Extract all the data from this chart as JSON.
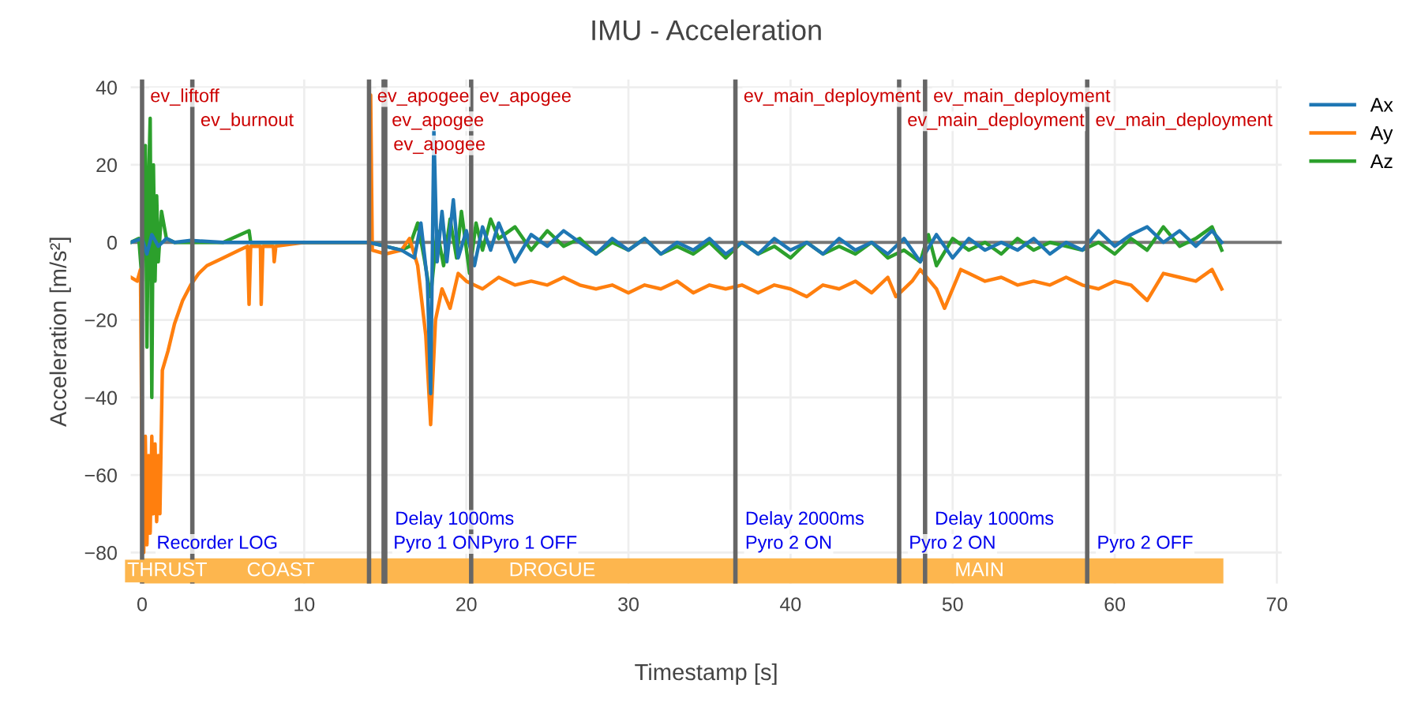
{
  "chart_data": {
    "type": "line",
    "title": "IMU - Acceleration",
    "xlabel": "Timestamp [s]",
    "ylabel": "Acceleration [m/s²]",
    "xlim": [
      -0.7,
      70.3
    ],
    "ylim": [
      -88,
      42
    ],
    "xticks": [
      0,
      10,
      20,
      30,
      40,
      50,
      60,
      70
    ],
    "yticks": [
      -80,
      -60,
      -40,
      -20,
      0,
      20,
      40
    ],
    "grid": true,
    "legend": "top right",
    "marker": "none",
    "line_style": "solid",
    "series": [
      {
        "name": "Ax",
        "color": "#1f77b4",
        "x": [
          -0.7,
          0,
          0.3,
          0.6,
          1,
          1.5,
          2,
          3,
          5,
          8,
          12,
          14,
          15,
          16,
          16.8,
          17.2,
          17.6,
          17.8,
          18.0,
          18.2,
          18.5,
          18.8,
          19.2,
          19.5,
          20,
          20.5,
          21,
          21.5,
          22,
          22.5,
          23,
          24,
          25,
          26,
          27,
          28,
          29,
          30,
          31,
          32,
          33,
          34,
          35,
          36,
          37,
          38,
          39,
          40,
          41,
          42,
          43,
          44,
          45,
          46,
          47,
          48,
          49,
          50,
          51,
          52,
          53,
          54,
          55,
          56,
          57,
          58,
          59,
          60,
          61,
          62,
          63,
          64,
          65,
          66,
          66.6
        ],
        "values": [
          0,
          1,
          -3,
          2,
          -1,
          1,
          0,
          0.5,
          0,
          0,
          0,
          0,
          -1,
          -2,
          -4,
          5,
          -10,
          -39,
          29,
          -5,
          8,
          -5,
          11,
          -4,
          3,
          -6,
          4,
          -2,
          5,
          0,
          -5,
          2,
          -1,
          3,
          0,
          -3,
          1,
          -2,
          1,
          -3,
          0,
          -2,
          1,
          -3,
          0,
          -3,
          1,
          -2,
          0,
          -3,
          1,
          -2,
          0,
          -3,
          1,
          -5,
          2,
          -4,
          1,
          -2,
          0,
          -2,
          1,
          -3,
          0,
          -2,
          3,
          -1,
          2,
          4,
          0,
          3,
          -1,
          3,
          0
        ]
      },
      {
        "name": "Ay",
        "color": "#ff7f0e",
        "x": [
          -0.7,
          -0.3,
          -0.1,
          0,
          0.1,
          0.2,
          0.3,
          0.4,
          0.5,
          0.6,
          0.7,
          0.8,
          0.9,
          1.0,
          1.1,
          1.25,
          1.6,
          2,
          2.5,
          3,
          3.5,
          4,
          5,
          6,
          6.5,
          6.6,
          6.7,
          7.3,
          7.35,
          7.45,
          8.1,
          8.15,
          8.25,
          10,
          13,
          14,
          14.1,
          14.2,
          15,
          16,
          16.5,
          17,
          17.5,
          17.8,
          18.1,
          18.5,
          19,
          19.5,
          20,
          21,
          22,
          23,
          24,
          25,
          26,
          27,
          28,
          29,
          30,
          31,
          32,
          33,
          34,
          35,
          36,
          37,
          38,
          39,
          40,
          41,
          42,
          43,
          44,
          45,
          46,
          46.5,
          47.5,
          48,
          49,
          49.5,
          50.5,
          51,
          52,
          53,
          54,
          55,
          56,
          57,
          58,
          59,
          60,
          61,
          62,
          63,
          64,
          65,
          66,
          66.6
        ],
        "values": [
          -9,
          -10,
          -7,
          -60,
          -80,
          -50,
          -78,
          -55,
          -75,
          -50,
          -70,
          -52,
          -72,
          -55,
          -70,
          -33,
          -28,
          -21,
          -15,
          -11,
          -8,
          -6,
          -4,
          -2,
          -1,
          -16,
          -1,
          -1,
          -16,
          -1,
          -1,
          -5,
          -1,
          0,
          0,
          0,
          38,
          -2,
          -3,
          -2,
          1,
          -6,
          -24,
          -47,
          -20,
          -12,
          -17,
          -8,
          -10,
          -12,
          -9,
          -11,
          -10,
          -11,
          -9,
          -11,
          -12,
          -11,
          -13,
          -11,
          -12,
          -10,
          -13,
          -11,
          -12,
          -11,
          -13,
          -11,
          -12,
          -14,
          -11,
          -12,
          -10,
          -13,
          -9,
          -14,
          -10,
          -7,
          -12,
          -17,
          -7,
          -8,
          -10,
          -9,
          -11,
          -10,
          -11,
          -9,
          -11,
          -12,
          -10,
          -11,
          -15,
          -8,
          -9,
          -10,
          -7,
          -12
        ]
      },
      {
        "name": "Az",
        "color": "#2ca02c",
        "x": [
          -0.7,
          -0.2,
          0,
          0.2,
          0.3,
          0.4,
          0.5,
          0.6,
          0.7,
          0.8,
          0.9,
          1.0,
          1.2,
          1.5,
          2,
          5,
          6.6,
          6.7,
          10,
          14,
          15,
          16,
          16.5,
          17,
          17.4,
          17.8,
          18.2,
          18.6,
          19,
          19.4,
          19.7,
          20.2,
          20.6,
          21,
          21.5,
          22,
          23,
          24,
          25,
          26,
          27,
          28,
          29,
          30,
          31,
          32,
          33,
          34,
          35,
          36,
          37,
          38,
          39,
          40,
          41,
          42,
          43,
          44,
          45,
          46,
          47,
          48,
          48.5,
          49,
          50,
          51,
          52,
          53,
          54,
          55,
          56,
          57,
          58,
          59,
          60,
          61,
          62,
          63,
          64,
          65,
          66,
          66.6
        ],
        "values": [
          0,
          1,
          -10,
          25,
          -27,
          15,
          32,
          -40,
          20,
          -10,
          12,
          -5,
          8,
          1,
          0,
          0,
          3,
          0,
          0,
          0,
          -1,
          -2,
          -1,
          5,
          -4,
          -14,
          3,
          -6,
          6,
          -4,
          8,
          -8,
          5,
          -2,
          6,
          1,
          4,
          -2,
          3,
          -1,
          1,
          -3,
          0,
          -2,
          1,
          -3,
          -1,
          -3,
          0,
          -4,
          0,
          -3,
          -1,
          -4,
          0,
          -3,
          -1,
          -3,
          0,
          -4,
          -2,
          -5,
          2,
          -6,
          1,
          -2,
          0,
          -3,
          1,
          -2,
          0,
          -1,
          -2,
          0,
          -3,
          1,
          -2,
          4,
          -1,
          1,
          4,
          -2
        ]
      }
    ],
    "ref_lines": [
      {
        "axis": "y",
        "value": 0,
        "color": "#777777"
      },
      {
        "axis": "x",
        "value": 0,
        "label": "ev_liftoff",
        "color": "#666666"
      },
      {
        "axis": "x",
        "value": 3.1,
        "label": "ev_burnout",
        "color": "#666666"
      },
      {
        "axis": "x",
        "value": 14.0,
        "label": "ev_apogee",
        "color": "#666666"
      },
      {
        "axis": "x",
        "value": 14.9,
        "label": "ev_apogee",
        "color": "#666666"
      },
      {
        "axis": "x",
        "value": 15.0,
        "label": "ev_apogee",
        "color": "#666666"
      },
      {
        "axis": "x",
        "value": 20.3,
        "label": "ev_apogee",
        "color": "#666666"
      },
      {
        "axis": "x",
        "value": 36.6,
        "label": "ev_main_deployment",
        "color": "#666666"
      },
      {
        "axis": "x",
        "value": 46.7,
        "label": "ev_main_deployment",
        "color": "#666666"
      },
      {
        "axis": "x",
        "value": 48.3,
        "label": "ev_main_deployment",
        "color": "#666666"
      },
      {
        "axis": "x",
        "value": 58.3,
        "label": "ev_main_deployment",
        "color": "#666666"
      }
    ],
    "annotations": [
      {
        "text": "Recorder LOG",
        "x": 0.3,
        "y": -80
      },
      {
        "text": "Pyro 1 ON",
        "x": 14.9,
        "y": -80
      },
      {
        "text": "Delay 1000ms",
        "x": 15.0,
        "y": -80
      },
      {
        "text": "Pyro 1 OFF",
        "x": 20.3,
        "y": -80
      },
      {
        "text": "Pyro 2 ON",
        "x": 36.6,
        "y": -80
      },
      {
        "text": "Delay 2000ms",
        "x": 36.6,
        "y": -80
      },
      {
        "text": "Pyro 2 ON",
        "x": 46.7,
        "y": -80
      },
      {
        "text": "Delay 1000ms",
        "x": 48.3,
        "y": -80
      },
      {
        "text": "Pyro 2 OFF",
        "x": 58.3,
        "y": -80
      }
    ],
    "bands": [
      {
        "axis": "x",
        "from": 0,
        "to": 3.1,
        "label": "THRUST",
        "color": "#fdb64e"
      },
      {
        "axis": "x",
        "from": 3.1,
        "to": 14.0,
        "label": "COAST",
        "color": "#fdb64e"
      },
      {
        "axis": "x",
        "from": 14.0,
        "to": 36.6,
        "label": "DROGUE",
        "color": "#fdb64e"
      },
      {
        "axis": "x",
        "from": 36.6,
        "to": 66.7,
        "label": "MAIN",
        "color": "#fdb64e"
      }
    ]
  }
}
